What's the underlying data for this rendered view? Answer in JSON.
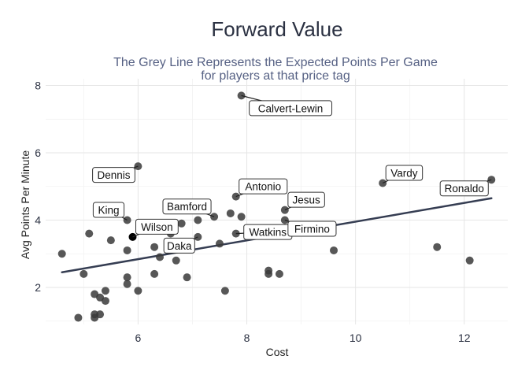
{
  "chart_data": {
    "type": "scatter",
    "title": "Forward Value",
    "subtitle_lines": [
      "The Grey Line Represents the Expected Points Per Game",
      "for players at that price tag"
    ],
    "xlabel": "Cost",
    "ylabel": "Avg Points Per Minute",
    "xlim": [
      4.3,
      12.8
    ],
    "ylim": [
      0.9,
      8.2
    ],
    "x_ticks": [
      6,
      8,
      10,
      12
    ],
    "y_ticks": [
      2,
      4,
      6,
      8
    ],
    "grid": true,
    "point_color": "#3a3a3a",
    "highlight_color": "#000000",
    "trend_color": "#353d52",
    "trend_line": {
      "x": [
        4.6,
        12.5
      ],
      "y": [
        2.45,
        4.65
      ]
    },
    "points": [
      {
        "x": 4.6,
        "y": 3.0
      },
      {
        "x": 4.9,
        "y": 1.1
      },
      {
        "x": 5.0,
        "y": 2.4
      },
      {
        "x": 5.1,
        "y": 3.6
      },
      {
        "x": 5.2,
        "y": 1.8
      },
      {
        "x": 5.2,
        "y": 1.2
      },
      {
        "x": 5.2,
        "y": 1.1
      },
      {
        "x": 5.3,
        "y": 1.7
      },
      {
        "x": 5.3,
        "y": 1.2
      },
      {
        "x": 5.4,
        "y": 1.6
      },
      {
        "x": 5.4,
        "y": 1.9
      },
      {
        "x": 5.5,
        "y": 3.4
      },
      {
        "x": 5.8,
        "y": 2.1
      },
      {
        "x": 5.8,
        "y": 2.3
      },
      {
        "x": 5.8,
        "y": 3.1
      },
      {
        "x": 5.8,
        "y": 4.0,
        "label": "King",
        "label_pos": "upper-left"
      },
      {
        "x": 5.9,
        "y": 3.5,
        "label": "Wilson",
        "label_pos": "upper-right",
        "highlight": true
      },
      {
        "x": 6.0,
        "y": 1.9
      },
      {
        "x": 6.0,
        "y": 5.6,
        "label": "Dennis",
        "label_pos": "lower-left"
      },
      {
        "x": 6.3,
        "y": 3.2
      },
      {
        "x": 6.3,
        "y": 2.4
      },
      {
        "x": 6.4,
        "y": 2.9
      },
      {
        "x": 6.6,
        "y": 3.6
      },
      {
        "x": 6.7,
        "y": 2.8
      },
      {
        "x": 6.8,
        "y": 3.9
      },
      {
        "x": 6.9,
        "y": 2.3
      },
      {
        "x": 7.1,
        "y": 4.0
      },
      {
        "x": 7.1,
        "y": 3.5,
        "label": "Daka",
        "label_pos": "lower-left"
      },
      {
        "x": 7.4,
        "y": 4.1,
        "label": "Bamford",
        "label_pos": "upper-left"
      },
      {
        "x": 7.5,
        "y": 3.3
      },
      {
        "x": 7.6,
        "y": 1.9
      },
      {
        "x": 7.7,
        "y": 4.2
      },
      {
        "x": 7.8,
        "y": 3.6,
        "label": "Watkins",
        "label_pos": "right"
      },
      {
        "x": 7.8,
        "y": 4.7,
        "label": "Antonio",
        "label_pos": "upper-right"
      },
      {
        "x": 7.9,
        "y": 4.1
      },
      {
        "x": 7.9,
        "y": 7.7,
        "label": "Calvert-Lewin",
        "label_pos": "below"
      },
      {
        "x": 8.4,
        "y": 2.5
      },
      {
        "x": 8.4,
        "y": 2.4
      },
      {
        "x": 8.6,
        "y": 2.4
      },
      {
        "x": 8.7,
        "y": 4.0,
        "label": "Firmino",
        "label_pos": "lower-right"
      },
      {
        "x": 8.7,
        "y": 4.3,
        "label": "Jesus",
        "label_pos": "upper-right"
      },
      {
        "x": 9.6,
        "y": 3.1
      },
      {
        "x": 10.5,
        "y": 5.1,
        "label": "Vardy",
        "label_pos": "upper-right"
      },
      {
        "x": 11.5,
        "y": 3.2
      },
      {
        "x": 12.1,
        "y": 2.8
      },
      {
        "x": 12.5,
        "y": 5.2,
        "label": "Ronaldo",
        "label_pos": "lower-left"
      }
    ]
  }
}
